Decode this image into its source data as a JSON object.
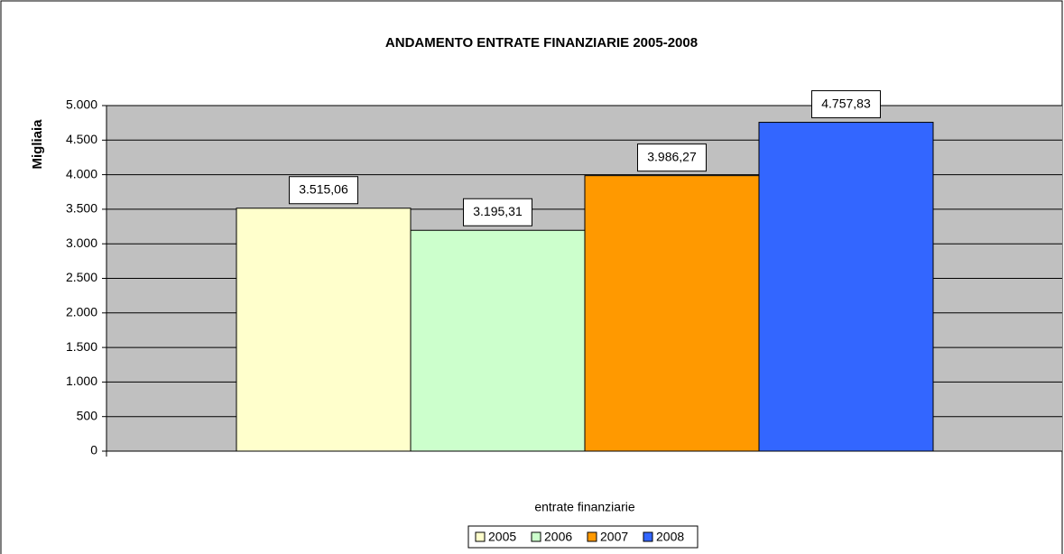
{
  "chart_data": {
    "type": "bar",
    "title": "ANDAMENTO ENTRATE FINANZIARIE 2005-2008",
    "ylabel": "Migliaia",
    "xlabel": "entrate finanziarie",
    "categories": [
      "entrate finanziarie"
    ],
    "series": [
      {
        "name": "2005",
        "color": "#ffffcc",
        "values": [
          3515.06
        ],
        "value_labels": [
          "3.515,06"
        ]
      },
      {
        "name": "2006",
        "color": "#ccffcc",
        "values": [
          3195.31
        ],
        "value_labels": [
          "3.195,31"
        ]
      },
      {
        "name": "2007",
        "color": "#ff9900",
        "values": [
          3986.27
        ],
        "value_labels": [
          "3.986,27"
        ]
      },
      {
        "name": "2008",
        "color": "#3366ff",
        "values": [
          4757.83
        ],
        "value_labels": [
          "4.757,83"
        ]
      }
    ],
    "ylim": [
      0,
      5000
    ],
    "yticks": [
      0,
      500,
      {
        "value": 1000,
        "label": "1.000"
      },
      {
        "value": 1500,
        "label": "1.500"
      },
      {
        "value": 2000,
        "label": "2.000"
      },
      {
        "value": 2500,
        "label": "2.500"
      },
      {
        "value": 3000,
        "label": "3.000"
      },
      {
        "value": 3500,
        "label": "3.500"
      },
      {
        "value": 4000,
        "label": "4.000"
      },
      {
        "value": 4500,
        "label": "4.500"
      },
      {
        "value": 5000,
        "label": "5.000"
      }
    ],
    "grid": true,
    "legend": "bottom"
  }
}
